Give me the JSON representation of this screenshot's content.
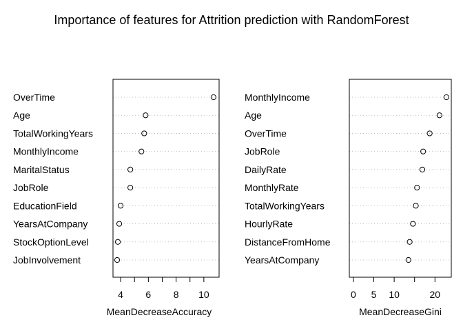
{
  "title": "Importance of features for Attrition prediction with RandomForest",
  "chart_data": [
    {
      "type": "scatter",
      "subtype": "dotchart",
      "xlabel": "MeanDecreaseAccuracy",
      "xlim": [
        3.45,
        11.1
      ],
      "xticks": [
        4,
        6,
        8,
        10
      ],
      "xminor": [
        5,
        7,
        9
      ],
      "grid": "dotted-horizontal",
      "categories": [
        "OverTime",
        "Age",
        "TotalWorkingYears",
        "MonthlyIncome",
        "MaritalStatus",
        "JobRole",
        "EducationField",
        "YearsAtCompany",
        "StockOptionLevel",
        "JobInvolvement"
      ],
      "values": [
        10.7,
        5.8,
        5.7,
        5.5,
        4.7,
        4.7,
        4.0,
        3.9,
        3.8,
        3.75
      ]
    },
    {
      "type": "scatter",
      "subtype": "dotchart",
      "xlabel": "MeanDecreaseGini",
      "xlim": [
        -1,
        24
      ],
      "xticks": [
        0,
        5,
        10,
        20
      ],
      "xminor": [
        15
      ],
      "grid": "dotted-horizontal",
      "categories": [
        "MonthlyIncome",
        "Age",
        "OverTime",
        "JobRole",
        "DailyRate",
        "MonthlyRate",
        "TotalWorkingYears",
        "HourlyRate",
        "DistanceFromHome",
        "YearsAtCompany"
      ],
      "values": [
        22.8,
        21.1,
        18.7,
        17.1,
        16.9,
        15.6,
        15.3,
        14.6,
        13.8,
        13.5
      ]
    }
  ]
}
